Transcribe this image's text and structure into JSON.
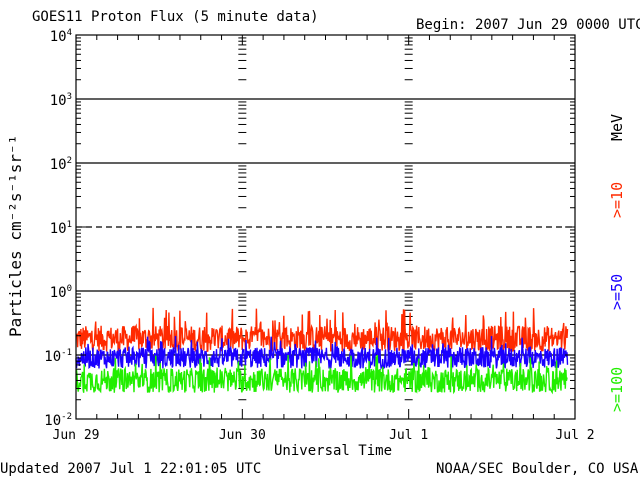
{
  "header": {
    "title": "GOES11 Proton Flux (5 minute data)",
    "begin": "Begin: 2007 Jun 29 0000 UTC"
  },
  "footer": {
    "updated": "Updated 2007 Jul  1 22:01:05 UTC",
    "source": "NOAA/SEC Boulder, CO USA"
  },
  "legend": {
    "unit": "MeV",
    "entries": [
      {
        "label": ">=10",
        "color": "#ff2a00"
      },
      {
        "label": ">=50",
        "color": "#1a00ff"
      },
      {
        "label": ">=100",
        "color": "#22ee00"
      }
    ]
  },
  "chart_data": {
    "type": "line",
    "title": "GOES11 Proton Flux (5 minute data)",
    "xlabel": "Universal Time",
    "ylabel": "Particles cm⁻²s⁻¹sr⁻¹",
    "x_tick_labels": [
      "Jun 29",
      "Jun 30",
      "Jul 1",
      "Jul 2"
    ],
    "xlim_days": [
      0,
      3
    ],
    "y_scale": "log",
    "ylim": [
      0.01,
      10000
    ],
    "y_tick_labels": [
      {
        "base": "10",
        "exp": "-2"
      },
      {
        "base": "10",
        "exp": "-1"
      },
      {
        "base": "10",
        "exp": "0"
      },
      {
        "base": "10",
        "exp": "1"
      },
      {
        "base": "10",
        "exp": "2"
      },
      {
        "base": "10",
        "exp": "3"
      },
      {
        "base": "10",
        "exp": "4"
      }
    ],
    "reference_lines": [
      {
        "y": 0.1,
        "style": "solid"
      },
      {
        "y": 1,
        "style": "solid"
      },
      {
        "y": 10,
        "style": "dashed"
      },
      {
        "y": 100,
        "style": "solid"
      },
      {
        "y": 1000,
        "style": "solid"
      }
    ],
    "series": [
      {
        "name": ">=10 MeV",
        "color": "#ff2a00",
        "typical": 0.18,
        "min": 0.1,
        "max": 0.55
      },
      {
        "name": ">=50 MeV",
        "color": "#1a00ff",
        "typical": 0.09,
        "min": 0.05,
        "max": 0.2
      },
      {
        "name": ">=100 MeV",
        "color": "#22ee00",
        "typical": 0.04,
        "min": 0.02,
        "max": 0.1
      }
    ]
  }
}
